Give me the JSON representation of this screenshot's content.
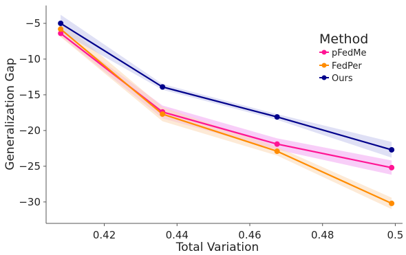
{
  "chart_data": {
    "type": "line",
    "title": "",
    "xlabel": "Total Variation",
    "ylabel": "Generalization Gap",
    "xlim": [
      0.404,
      0.502
    ],
    "ylim": [
      -33,
      -2.5
    ],
    "xticks": [
      0.42,
      0.44,
      0.46,
      0.48,
      0.5
    ],
    "xtick_labels": [
      "0.42",
      "0.44",
      "0.46",
      "0.48",
      "0.5"
    ],
    "yticks": [
      -5,
      -10,
      -15,
      -20,
      -25,
      -30
    ],
    "ytick_labels": [
      "−5",
      "−10",
      "−15",
      "−20",
      "−25",
      "−30"
    ],
    "grid": false,
    "legend": {
      "title": "Method",
      "placement": "top-right"
    },
    "x": [
      0.408,
      0.436,
      0.4675,
      0.499
    ],
    "series": [
      {
        "name": "pFedMe",
        "color": "#ff1493",
        "band_color": "#f3a5f3",
        "values": [
          -6.4,
          -17.4,
          -21.9,
          -25.2
        ],
        "band": [
          0.4,
          0.9,
          0.8,
          1.0
        ]
      },
      {
        "name": "FedPer",
        "color": "#ff8c00",
        "band_color": "#fcd8b4",
        "values": [
          -5.8,
          -17.7,
          -22.9,
          -30.2
        ],
        "band": [
          1.1,
          1.0,
          0.6,
          0.8
        ]
      },
      {
        "name": "Ours",
        "color": "#00008b",
        "band_color": "#c4c6ec",
        "values": [
          -5.0,
          -13.9,
          -18.1,
          -22.7
        ],
        "band": [
          1.2,
          0.4,
          0.4,
          1.1
        ]
      }
    ]
  }
}
